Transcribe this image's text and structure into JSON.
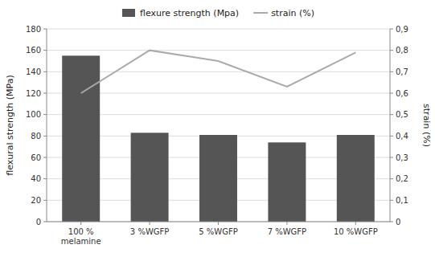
{
  "chart_data": {
    "type": "bar",
    "categories": [
      "100 %\nmelamine",
      "3 %WGFP",
      "5 %WGFP",
      "7 %WGFP",
      "10 %WGFP"
    ],
    "series": [
      {
        "name": "flexure strength (Mpa)",
        "type": "bar",
        "color": "#555555",
        "values": [
          155,
          83,
          81,
          74,
          81
        ]
      },
      {
        "name": "strain (%)",
        "type": "line",
        "color": "#aaaaaa",
        "axis": "y2",
        "values": [
          0.6,
          0.8,
          0.75,
          0.63,
          0.79
        ]
      }
    ],
    "ylabel": "flexural strength (MPa)",
    "y2label": "strain (%)",
    "ylim": [
      0,
      180
    ],
    "yticks": [
      0,
      20,
      40,
      60,
      80,
      100,
      120,
      140,
      160,
      180
    ],
    "y2lim": [
      0,
      0.9
    ],
    "y2ticks": [
      0,
      {
        "value": 0.1,
        "label": "0,1"
      },
      {
        "value": 0.2,
        "label": "0,2"
      },
      {
        "value": 0.3,
        "label": "0,3"
      },
      {
        "value": 0.4,
        "label": "0,4"
      },
      {
        "value": 0.5,
        "label": "0,5"
      },
      {
        "value": 0.6,
        "label": "0,6"
      },
      {
        "value": 0.7,
        "label": "0,7"
      },
      {
        "value": 0.8,
        "label": "0,8"
      },
      {
        "value": 0.9,
        "label": "0,9"
      }
    ],
    "grid": true,
    "legend": "top"
  }
}
